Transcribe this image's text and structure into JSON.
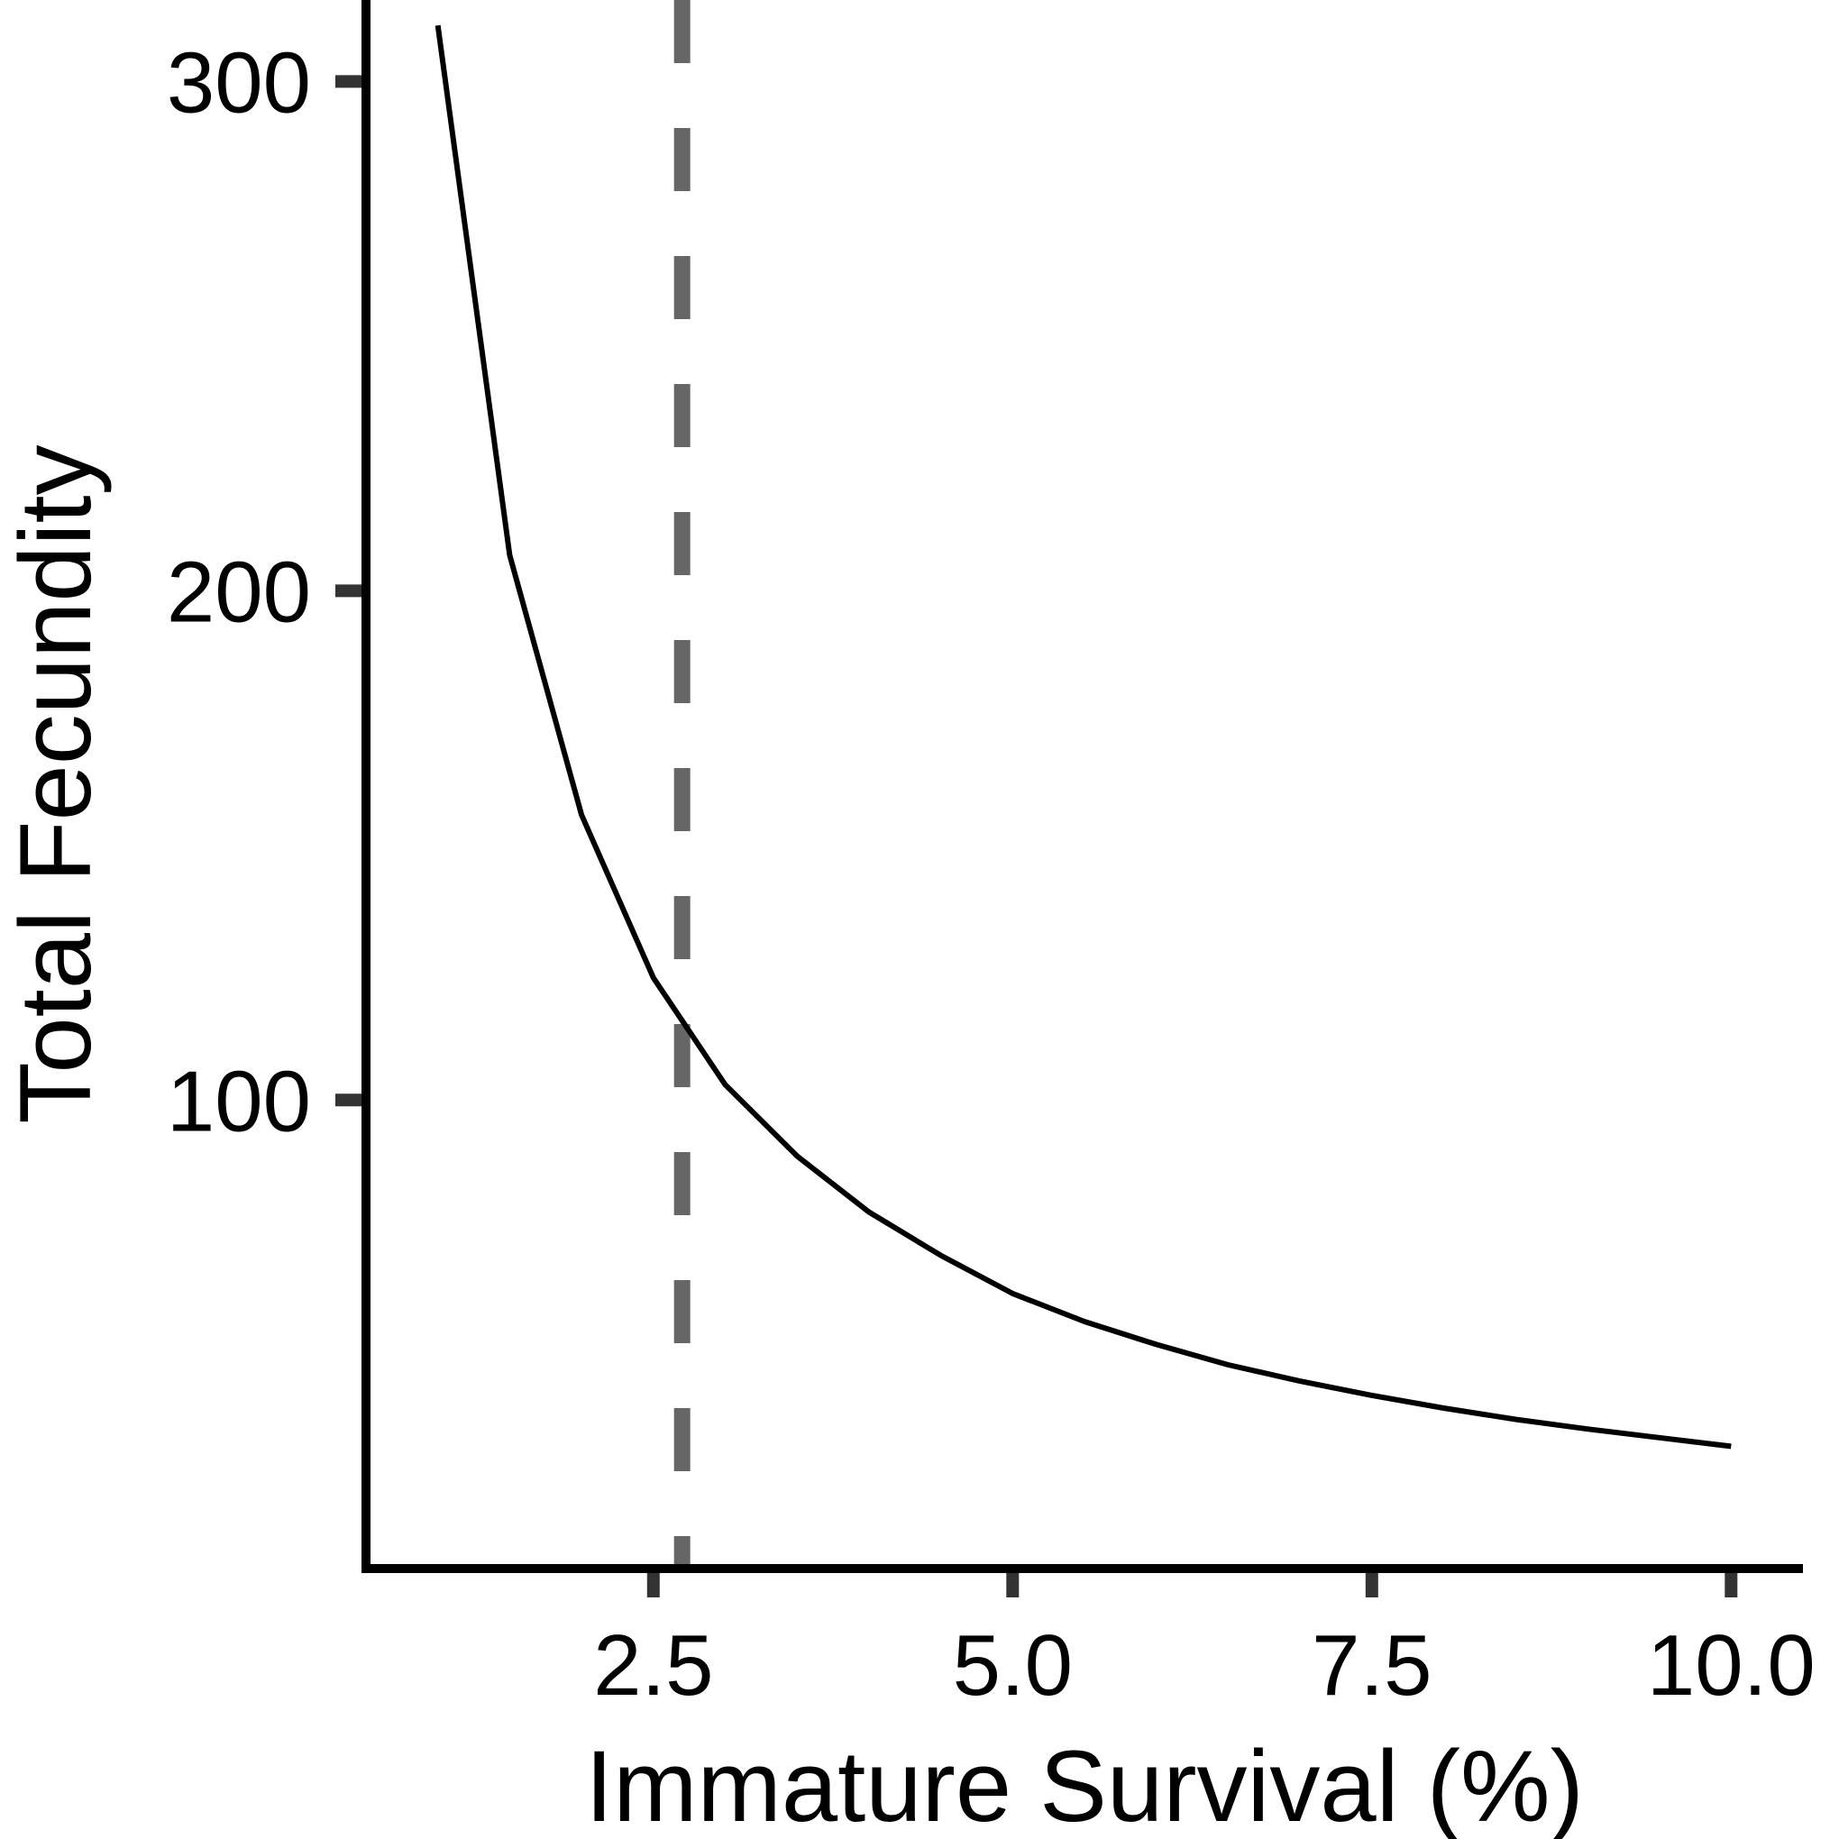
{
  "chart_data": {
    "type": "line",
    "title": "",
    "xlabel": "Immature Survival (%)",
    "ylabel": "Total Fecundity",
    "xlim": [
      0.5,
      10.5
    ],
    "ylim": [
      8,
      316
    ],
    "xticks": [
      2.5,
      5.0,
      7.5,
      10.0
    ],
    "xtick_labels": [
      "2.5",
      "5.0",
      "7.5",
      "10.0"
    ],
    "yticks": [
      100,
      200,
      300
    ],
    "ytick_labels": [
      "100",
      "200",
      "300"
    ],
    "grid": false,
    "legend": "none",
    "series": [
      {
        "x": [
          1.0,
          1.5,
          2.0,
          2.5,
          3.0,
          3.5,
          4.0,
          4.5,
          5.0,
          5.5,
          6.0,
          6.5,
          7.0,
          7.5,
          8.0,
          8.5,
          9.0,
          9.5,
          10.0
        ],
        "values": [
          311,
          207,
          156,
          124,
          103,
          89,
          78,
          69.5,
          62,
          56.5,
          52,
          48,
          44.8,
          42,
          39.5,
          37.3,
          35.4,
          33.7,
          32
        ],
        "color": "#000000"
      }
    ],
    "reference_lines": [
      {
        "orientation": "vertical",
        "x": 2.7,
        "style": "dashed",
        "color": "#666666"
      }
    ]
  }
}
